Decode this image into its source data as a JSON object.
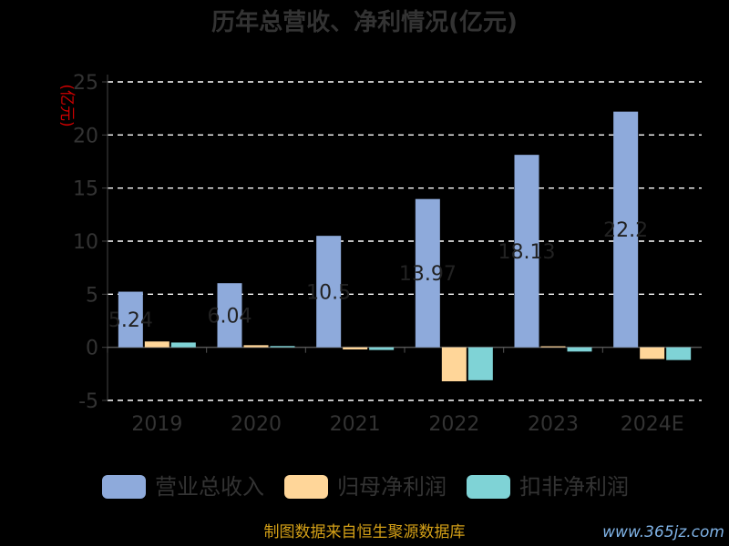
{
  "chart_data": {
    "type": "bar",
    "title": "历年总营收、净利情况(亿元)",
    "ylabel": "(亿元)",
    "xlabel": "",
    "categories": [
      "2019",
      "2020",
      "2021",
      "2022",
      "2023",
      "2024E"
    ],
    "ylim": [
      -5,
      25
    ],
    "yticks": [
      -5,
      0,
      5,
      10,
      15,
      20,
      25
    ],
    "grid": true,
    "legend_position": "bottom",
    "series": [
      {
        "name": "营业总收入",
        "color": "#8eaadb",
        "values": [
          5.24,
          6.04,
          10.5,
          13.97,
          18.13,
          22.2
        ]
      },
      {
        "name": "归母净利润",
        "color": "#ffd699",
        "values": [
          0.55,
          0.2,
          -0.2,
          -3.2,
          0.1,
          -1.1
        ]
      },
      {
        "name": "扣非净利润",
        "color": "#7fd3d6",
        "values": [
          0.45,
          0.12,
          -0.25,
          -3.1,
          -0.4,
          -1.2
        ]
      }
    ],
    "data_labels": [
      "5.24",
      "6.04",
      "10.5",
      "13.97",
      "18.13",
      "22.2"
    ]
  },
  "source": "制图数据来自恒生聚源数据库",
  "watermark": "www.365jz.com"
}
